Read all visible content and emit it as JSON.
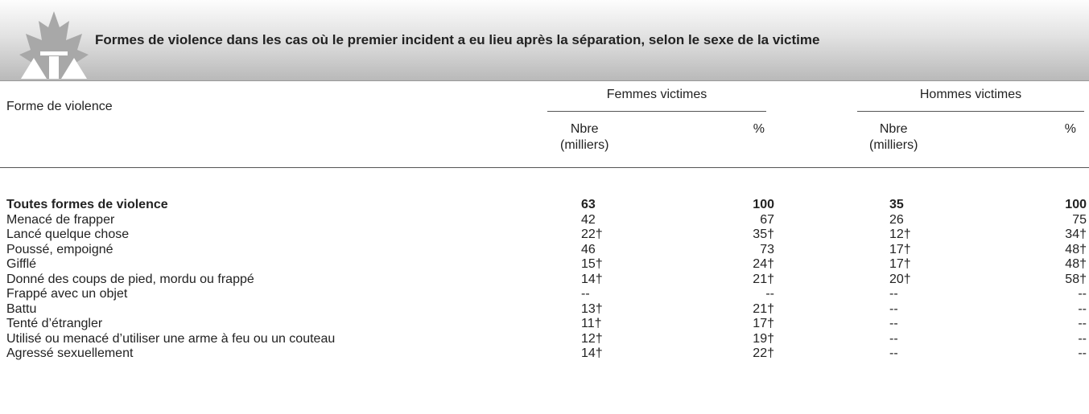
{
  "header": {
    "title": "Formes de violence dans les cas où le premier incident a eu lieu après la séparation, selon le sexe de la victime"
  },
  "table": {
    "row_header": "Forme de violence",
    "groups": [
      "Femmes victimes",
      "Hommes victimes"
    ],
    "subheaders": [
      "Nbre\n(milliers)",
      "%",
      "Nbre\n(milliers)",
      "%"
    ],
    "rows": [
      [
        "Toutes formes de violence",
        "63",
        "100",
        "35",
        "100"
      ],
      [
        "Menacé de frapper",
        "42",
        "67",
        "26",
        "75"
      ],
      [
        "Lancé quelque chose",
        "22†",
        "35†",
        "12†",
        "34†"
      ],
      [
        "Poussé, empoigné",
        "46",
        "73",
        "17†",
        "48†"
      ],
      [
        "Gifflé",
        "15†",
        "24†",
        "17†",
        "48†"
      ],
      [
        "Donné des coups de pied, mordu ou frappé",
        "14†",
        "21†",
        "20†",
        "58†"
      ],
      [
        "Frappé avec un objet",
        "--",
        "--",
        "--",
        "--"
      ],
      [
        "Battu",
        "13†",
        "21†",
        "--",
        "--"
      ],
      [
        "Tenté d’étrangler",
        "11†",
        "17†",
        "--",
        "--"
      ],
      [
        "Utilisé ou menacé d’utiliser une arme à feu ou un couteau",
        "12†",
        "19†",
        "--",
        "--"
      ],
      [
        "Agressé sexuellement",
        "14†",
        "22†",
        "--",
        "--"
      ]
    ]
  }
}
